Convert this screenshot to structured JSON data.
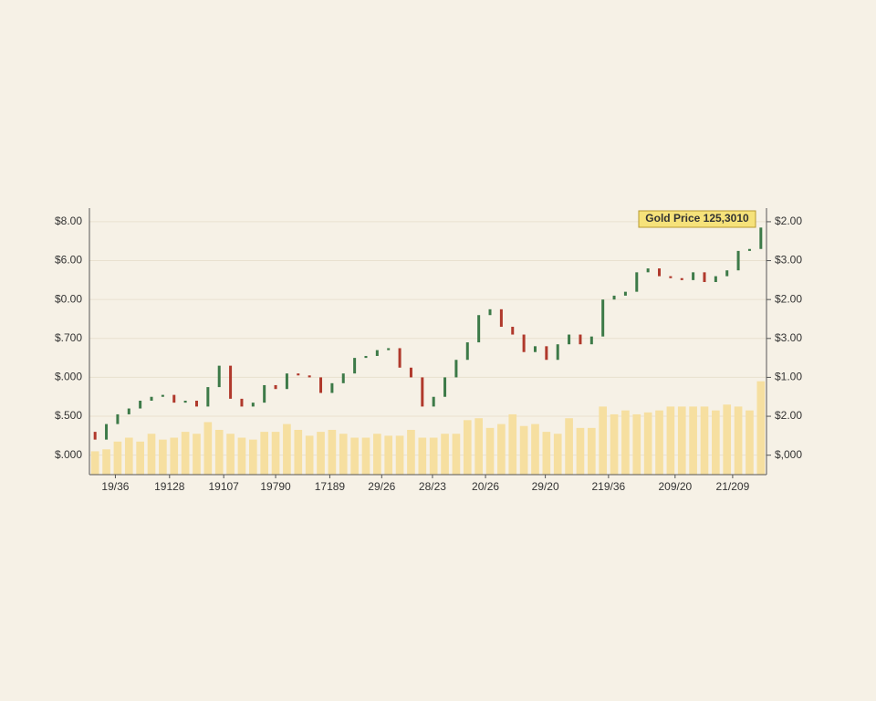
{
  "chart_data": {
    "type": "candlestick",
    "annotation": "Gold Price 125,3010",
    "open": [
      0.6,
      0.4,
      0.8,
      1.05,
      1.2,
      1.4,
      1.5,
      1.55,
      1.35,
      1.4,
      1.25,
      1.75,
      2.3,
      1.45,
      1.25,
      1.35,
      1.8,
      1.7,
      2.1,
      2.05,
      2.0,
      1.6,
      1.85,
      2.1,
      2.5,
      2.55,
      2.7,
      2.75,
      2.25,
      2.0,
      1.25,
      1.5,
      2.0,
      2.45,
      2.9,
      3.6,
      3.75,
      3.3,
      3.1,
      2.65,
      2.8,
      2.45,
      2.85,
      3.1,
      2.85,
      3.05,
      4.0,
      4.1,
      4.2,
      4.7,
      4.8,
      4.6,
      4.55,
      4.5,
      4.7,
      4.45,
      4.6,
      4.75,
      5.25,
      5.3
    ],
    "close": [
      0.4,
      0.8,
      1.05,
      1.2,
      1.4,
      1.5,
      1.55,
      1.35,
      1.4,
      1.25,
      1.75,
      2.3,
      1.45,
      1.25,
      1.35,
      1.8,
      1.7,
      2.1,
      2.05,
      2.0,
      1.6,
      1.85,
      2.1,
      2.5,
      2.55,
      2.7,
      2.75,
      2.25,
      2.0,
      1.25,
      1.5,
      2.0,
      2.45,
      2.9,
      3.6,
      3.75,
      3.3,
      3.1,
      2.65,
      2.8,
      2.45,
      2.85,
      3.1,
      2.85,
      3.05,
      4.0,
      4.1,
      4.2,
      4.7,
      4.8,
      4.6,
      4.55,
      4.5,
      4.7,
      4.45,
      4.6,
      4.75,
      5.25,
      5.3,
      5.85
    ],
    "volume": [
      0.1,
      0.15,
      0.35,
      0.45,
      0.35,
      0.55,
      0.4,
      0.45,
      0.6,
      0.55,
      0.85,
      0.65,
      0.55,
      0.45,
      0.4,
      0.6,
      0.6,
      0.8,
      0.65,
      0.5,
      0.6,
      0.65,
      0.55,
      0.45,
      0.45,
      0.55,
      0.5,
      0.5,
      0.65,
      0.45,
      0.45,
      0.55,
      0.55,
      0.9,
      0.95,
      0.7,
      0.8,
      1.05,
      0.75,
      0.8,
      0.6,
      0.55,
      0.95,
      0.7,
      0.7,
      1.25,
      1.05,
      1.15,
      1.05,
      1.1,
      1.15,
      1.25,
      1.25,
      1.25,
      1.25,
      1.15,
      1.3,
      1.25,
      1.15,
      1.9
    ],
    "up_color": "#3d7a48",
    "down_color": "#b0392c",
    "volume_color": "#f6dfa0",
    "xlim": [
      -0.5,
      59.5
    ],
    "xticks": [
      {
        "value": 1.8,
        "label": "19/36"
      },
      {
        "value": 6.6,
        "label": "19128"
      },
      {
        "value": 11.4,
        "label": "19107"
      },
      {
        "value": 16,
        "label": "19790"
      },
      {
        "value": 20.8,
        "label": "17189"
      },
      {
        "value": 25.4,
        "label": "29/26"
      },
      {
        "value": 29.9,
        "label": "28/23"
      },
      {
        "value": 34.6,
        "label": "20/26"
      },
      {
        "value": 39.9,
        "label": "29/20"
      },
      {
        "value": 45.5,
        "label": "219/36"
      },
      {
        "value": 51.4,
        "label": "209/20"
      },
      {
        "value": 56.5,
        "label": "21/209"
      }
    ],
    "ylim": [
      -0.5,
      6.35
    ],
    "yticks": [
      {
        "value": 0,
        "label": "$.000"
      },
      {
        "value": 1,
        "label": "$.500"
      },
      {
        "value": 2,
        "label": "$.000"
      },
      {
        "value": 3,
        "label": "$.700"
      },
      {
        "value": 4,
        "label": "$0.00"
      },
      {
        "value": 5,
        "label": "$6.00"
      },
      {
        "value": 6,
        "label": "$8.00"
      }
    ],
    "y2lim": [
      -0.5,
      6.35
    ],
    "y2ticks": [
      {
        "value": 0,
        "label": "$,000"
      },
      {
        "value": 1,
        "label": "$2.00"
      },
      {
        "value": 2,
        "label": "$1.00"
      },
      {
        "value": 3,
        "label": "$3.00"
      },
      {
        "value": 4,
        "label": "$2.00"
      },
      {
        "value": 5,
        "label": "$3.00"
      },
      {
        "value": 6,
        "label": "$2.00"
      }
    ],
    "grid": true
  }
}
